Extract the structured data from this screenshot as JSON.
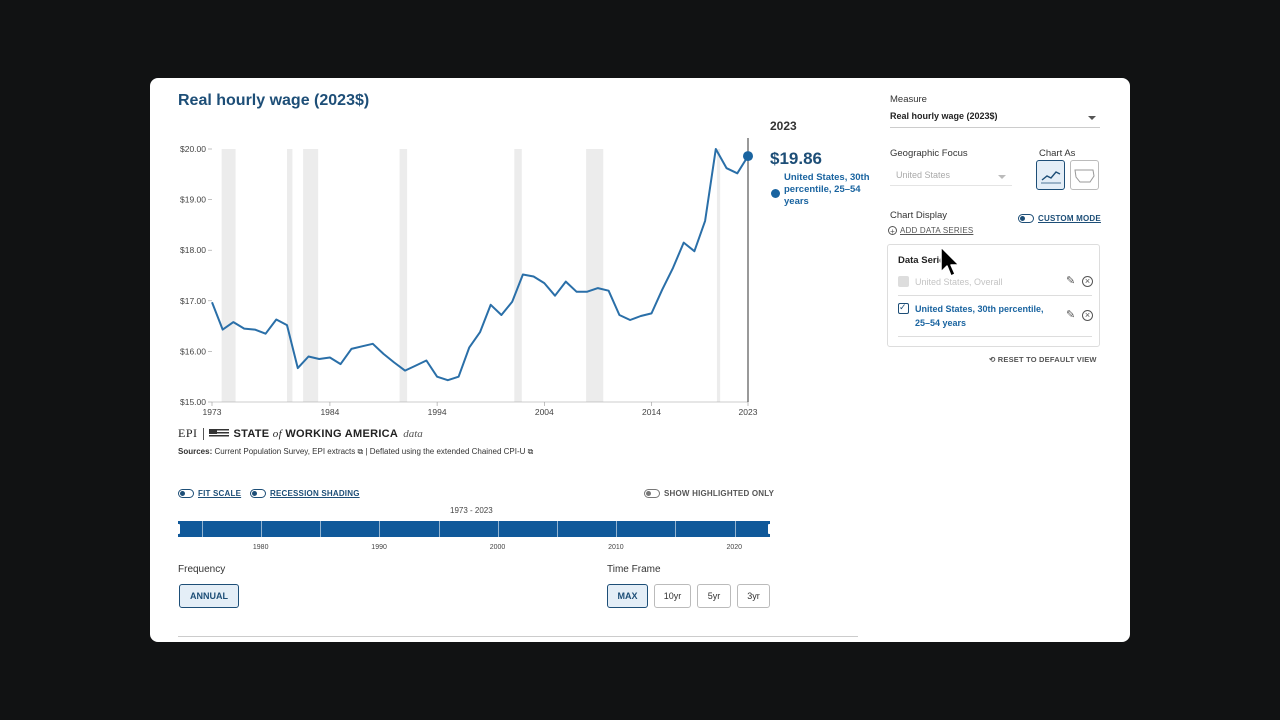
{
  "title": "Real hourly wage (2023$)",
  "tooltip": {
    "year": "2023",
    "value": "$19.86",
    "series_label": "United States, 30th percentile, 25–54 years"
  },
  "chart_data": {
    "type": "line",
    "title": "Real hourly wage (2023$)",
    "xlabel": "",
    "ylabel": "",
    "y_ticks": [
      "$20.00",
      "$19.00",
      "$18.00",
      "$17.00",
      "$16.00",
      "$15.00"
    ],
    "x_ticks": [
      "1973",
      "1984",
      "1994",
      "2004",
      "2014",
      "2023"
    ],
    "ylim": [
      15,
      20
    ],
    "xlim": [
      1973,
      2023
    ],
    "recession_shading": [
      [
        1973.9,
        1975.2
      ],
      [
        1980.0,
        1980.5
      ],
      [
        1981.5,
        1982.9
      ],
      [
        1990.5,
        1991.2
      ],
      [
        2001.2,
        2001.9
      ],
      [
        2007.9,
        2009.5
      ],
      [
        2020.1,
        2020.4
      ]
    ],
    "series": [
      {
        "name": "United States, 30th percentile, 25–54 years",
        "color": "#2a6fa8",
        "x": [
          1973,
          1974,
          1975,
          1976,
          1977,
          1978,
          1979,
          1980,
          1981,
          1982,
          1983,
          1984,
          1985,
          1986,
          1987,
          1988,
          1989,
          1990,
          1991,
          1992,
          1993,
          1994,
          1995,
          1996,
          1997,
          1998,
          1999,
          2000,
          2001,
          2002,
          2003,
          2004,
          2005,
          2006,
          2007,
          2008,
          2009,
          2010,
          2011,
          2012,
          2013,
          2014,
          2015,
          2016,
          2017,
          2018,
          2019,
          2020,
          2021,
          2022,
          2023
        ],
        "values": [
          16.97,
          16.43,
          16.58,
          16.45,
          16.43,
          16.35,
          16.63,
          16.52,
          15.67,
          15.9,
          15.85,
          15.88,
          15.75,
          16.05,
          16.1,
          16.15,
          15.95,
          15.78,
          15.62,
          15.72,
          15.82,
          15.5,
          15.43,
          15.5,
          16.08,
          16.38,
          16.92,
          16.72,
          16.98,
          17.52,
          17.48,
          17.35,
          17.1,
          17.38,
          17.18,
          17.18,
          17.25,
          17.2,
          16.72,
          16.62,
          16.7,
          16.75,
          17.22,
          17.65,
          18.15,
          17.98,
          18.58,
          20.0,
          19.62,
          19.52,
          19.86
        ]
      }
    ],
    "legend": "right"
  },
  "brand": {
    "epi": "EPI",
    "state": "STATE",
    "of": "of",
    "working_america": "WORKING AMERICA",
    "data": "data"
  },
  "sources": {
    "label": "Sources:",
    "text1": "Current Population Survey, EPI extracts",
    "text2": "| Deflated using the extended Chained CPI-U"
  },
  "toggles": {
    "fit_scale": "FIT SCALE",
    "recession_shading": "RECESSION SHADING",
    "show_highlighted": "SHOW HIGHLIGHTED ONLY"
  },
  "time_slider": {
    "range_label": "1973 - 2023",
    "range": [
      1973,
      2023
    ],
    "years": [
      "1980",
      "1990",
      "2000",
      "2010",
      "2020"
    ]
  },
  "frequency": {
    "label": "Frequency",
    "options": [
      "ANNUAL"
    ]
  },
  "time_frame": {
    "label": "Time Frame",
    "options": [
      "MAX",
      "10yr",
      "5yr",
      "3yr"
    ],
    "selected": "MAX"
  },
  "panel": {
    "measure_label": "Measure",
    "measure_value": "Real hourly wage (2023$)",
    "geo_label": "Geographic Focus",
    "geo_value": "United States",
    "chart_as_label": "Chart As",
    "chart_display_label": "Chart Display",
    "custom_mode": "CUSTOM MODE",
    "add_series": "ADD DATA SERIES",
    "data_series_title": "Data Series",
    "series": [
      {
        "label": "United States, Overall",
        "checked": false
      },
      {
        "label_line1": "United States, 30th percentile,",
        "label_line2": "25–54 years",
        "checked": true
      }
    ],
    "reset": "RESET TO DEFAULT VIEW"
  },
  "colors": {
    "accent": "#1d4e77",
    "line": "#2a6fa8",
    "slider": "#10599a"
  }
}
